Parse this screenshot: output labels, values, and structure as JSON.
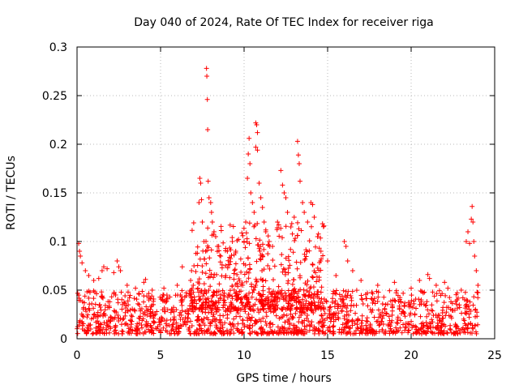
{
  "chart_data": {
    "type": "scatter",
    "title": "Day 040 of 2024, Rate Of TEC Index for receiver riga",
    "xlabel": "GPS time / hours",
    "ylabel": "ROTI / TECUs",
    "xlim": [
      0,
      25
    ],
    "ylim": [
      0,
      0.3
    ],
    "x_ticks": [
      "0",
      "5",
      "10",
      "15",
      "20",
      "25"
    ],
    "y_ticks": [
      "0",
      "0.05",
      "0.1",
      "0.15",
      "0.2",
      "0.25",
      "0.3"
    ],
    "grid": true,
    "marker": "+",
    "color": "#ff0000",
    "series": [
      {
        "name": "ROTI",
        "background_band": {
          "x_range": [
            0,
            24
          ],
          "y_range": [
            0.005,
            0.05
          ]
        },
        "points": [
          [
            0.1,
            0.098
          ],
          [
            0.15,
            0.09
          ],
          [
            0.2,
            0.085
          ],
          [
            0.3,
            0.078
          ],
          [
            0.5,
            0.07
          ],
          [
            0.7,
            0.065
          ],
          [
            1.0,
            0.06
          ],
          [
            1.3,
            0.062
          ],
          [
            1.5,
            0.07
          ],
          [
            1.6,
            0.074
          ],
          [
            1.8,
            0.072
          ],
          [
            2.2,
            0.068
          ],
          [
            2.4,
            0.08
          ],
          [
            2.5,
            0.074
          ],
          [
            2.6,
            0.07
          ],
          [
            3.0,
            0.055
          ],
          [
            3.5,
            0.052
          ],
          [
            4.0,
            0.058
          ],
          [
            4.1,
            0.061
          ],
          [
            4.5,
            0.05
          ],
          [
            5.2,
            0.052
          ],
          [
            6.0,
            0.055
          ],
          [
            6.3,
            0.074
          ],
          [
            6.8,
            0.06
          ],
          [
            7.0,
            0.075
          ],
          [
            7.2,
            0.088
          ],
          [
            7.3,
            0.14
          ],
          [
            7.35,
            0.165
          ],
          [
            7.4,
            0.16
          ],
          [
            7.45,
            0.143
          ],
          [
            7.5,
            0.12
          ],
          [
            7.6,
            0.1
          ],
          [
            7.7,
            0.09
          ],
          [
            7.75,
            0.278
          ],
          [
            7.77,
            0.27
          ],
          [
            7.8,
            0.246
          ],
          [
            7.82,
            0.215
          ],
          [
            7.85,
            0.162
          ],
          [
            7.9,
            0.145
          ],
          [
            8.0,
            0.14
          ],
          [
            8.05,
            0.13
          ],
          [
            8.1,
            0.12
          ],
          [
            8.2,
            0.11
          ],
          [
            8.3,
            0.105
          ],
          [
            8.4,
            0.095
          ],
          [
            8.6,
            0.085
          ],
          [
            8.9,
            0.075
          ],
          [
            9.0,
            0.09
          ],
          [
            9.3,
            0.1
          ],
          [
            9.5,
            0.09
          ],
          [
            9.8,
            0.082
          ],
          [
            10.0,
            0.1
          ],
          [
            10.1,
            0.12
          ],
          [
            10.2,
            0.165
          ],
          [
            10.25,
            0.19
          ],
          [
            10.3,
            0.206
          ],
          [
            10.35,
            0.18
          ],
          [
            10.4,
            0.15
          ],
          [
            10.5,
            0.14
          ],
          [
            10.6,
            0.13
          ],
          [
            10.7,
            0.222
          ],
          [
            10.75,
            0.22
          ],
          [
            10.8,
            0.212
          ],
          [
            10.7,
            0.197
          ],
          [
            10.8,
            0.194
          ],
          [
            10.9,
            0.16
          ],
          [
            11.0,
            0.145
          ],
          [
            11.1,
            0.135
          ],
          [
            11.2,
            0.12
          ],
          [
            11.3,
            0.11
          ],
          [
            11.5,
            0.1
          ],
          [
            11.7,
            0.095
          ],
          [
            12.0,
            0.12
          ],
          [
            12.2,
            0.173
          ],
          [
            12.3,
            0.158
          ],
          [
            12.4,
            0.15
          ],
          [
            12.5,
            0.145
          ],
          [
            12.6,
            0.13
          ],
          [
            12.8,
            0.115
          ],
          [
            13.0,
            0.125
          ],
          [
            13.2,
            0.203
          ],
          [
            13.25,
            0.189
          ],
          [
            13.3,
            0.18
          ],
          [
            13.35,
            0.162
          ],
          [
            13.5,
            0.14
          ],
          [
            13.6,
            0.13
          ],
          [
            13.8,
            0.12
          ],
          [
            14.0,
            0.14
          ],
          [
            14.1,
            0.138
          ],
          [
            14.2,
            0.125
          ],
          [
            14.4,
            0.105
          ],
          [
            14.6,
            0.09
          ],
          [
            15.0,
            0.08
          ],
          [
            15.5,
            0.065
          ],
          [
            16.0,
            0.1
          ],
          [
            16.1,
            0.095
          ],
          [
            16.2,
            0.08
          ],
          [
            16.5,
            0.07
          ],
          [
            17.0,
            0.06
          ],
          [
            18.0,
            0.055
          ],
          [
            19.0,
            0.058
          ],
          [
            20.0,
            0.052
          ],
          [
            20.5,
            0.06
          ],
          [
            21.0,
            0.066
          ],
          [
            21.1,
            0.062
          ],
          [
            21.5,
            0.055
          ],
          [
            22.0,
            0.058
          ],
          [
            22.2,
            0.052
          ],
          [
            23.0,
            0.05
          ],
          [
            23.3,
            0.1
          ],
          [
            23.4,
            0.11
          ],
          [
            23.5,
            0.098
          ],
          [
            23.6,
            0.123
          ],
          [
            23.65,
            0.136
          ],
          [
            23.7,
            0.12
          ],
          [
            23.75,
            0.1
          ],
          [
            23.8,
            0.085
          ],
          [
            23.9,
            0.07
          ],
          [
            24.0,
            0.055
          ]
        ]
      }
    ]
  }
}
